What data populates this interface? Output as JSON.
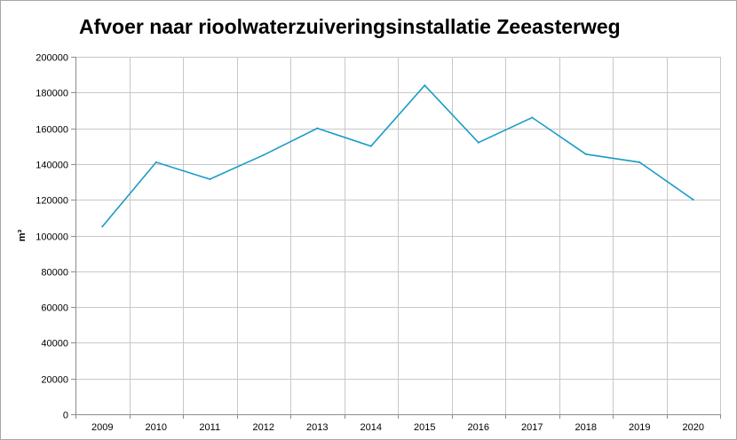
{
  "chart_data": {
    "type": "line",
    "title": "Afvoer naar rioolwaterzuiveringsinstallatie Zeeasterweg",
    "xlabel": "",
    "ylabel": "m³",
    "categories": [
      "2009",
      "2010",
      "2011",
      "2012",
      "2013",
      "2014",
      "2015",
      "2016",
      "2017",
      "2018",
      "2019",
      "2020"
    ],
    "series": [
      {
        "values": [
          105000,
          141000,
          131500,
          145000,
          160000,
          150000,
          184000,
          152000,
          166000,
          145500,
          141000,
          120000
        ],
        "color": "#1a9cc6"
      }
    ],
    "ylim": [
      0,
      200000
    ],
    "yticks": [
      0,
      20000,
      40000,
      60000,
      80000,
      100000,
      120000,
      140000,
      160000,
      180000,
      200000
    ],
    "grid": true,
    "legend": "none",
    "gridColor": "#c8c8c8",
    "axisColor": "#8c8c8c"
  }
}
